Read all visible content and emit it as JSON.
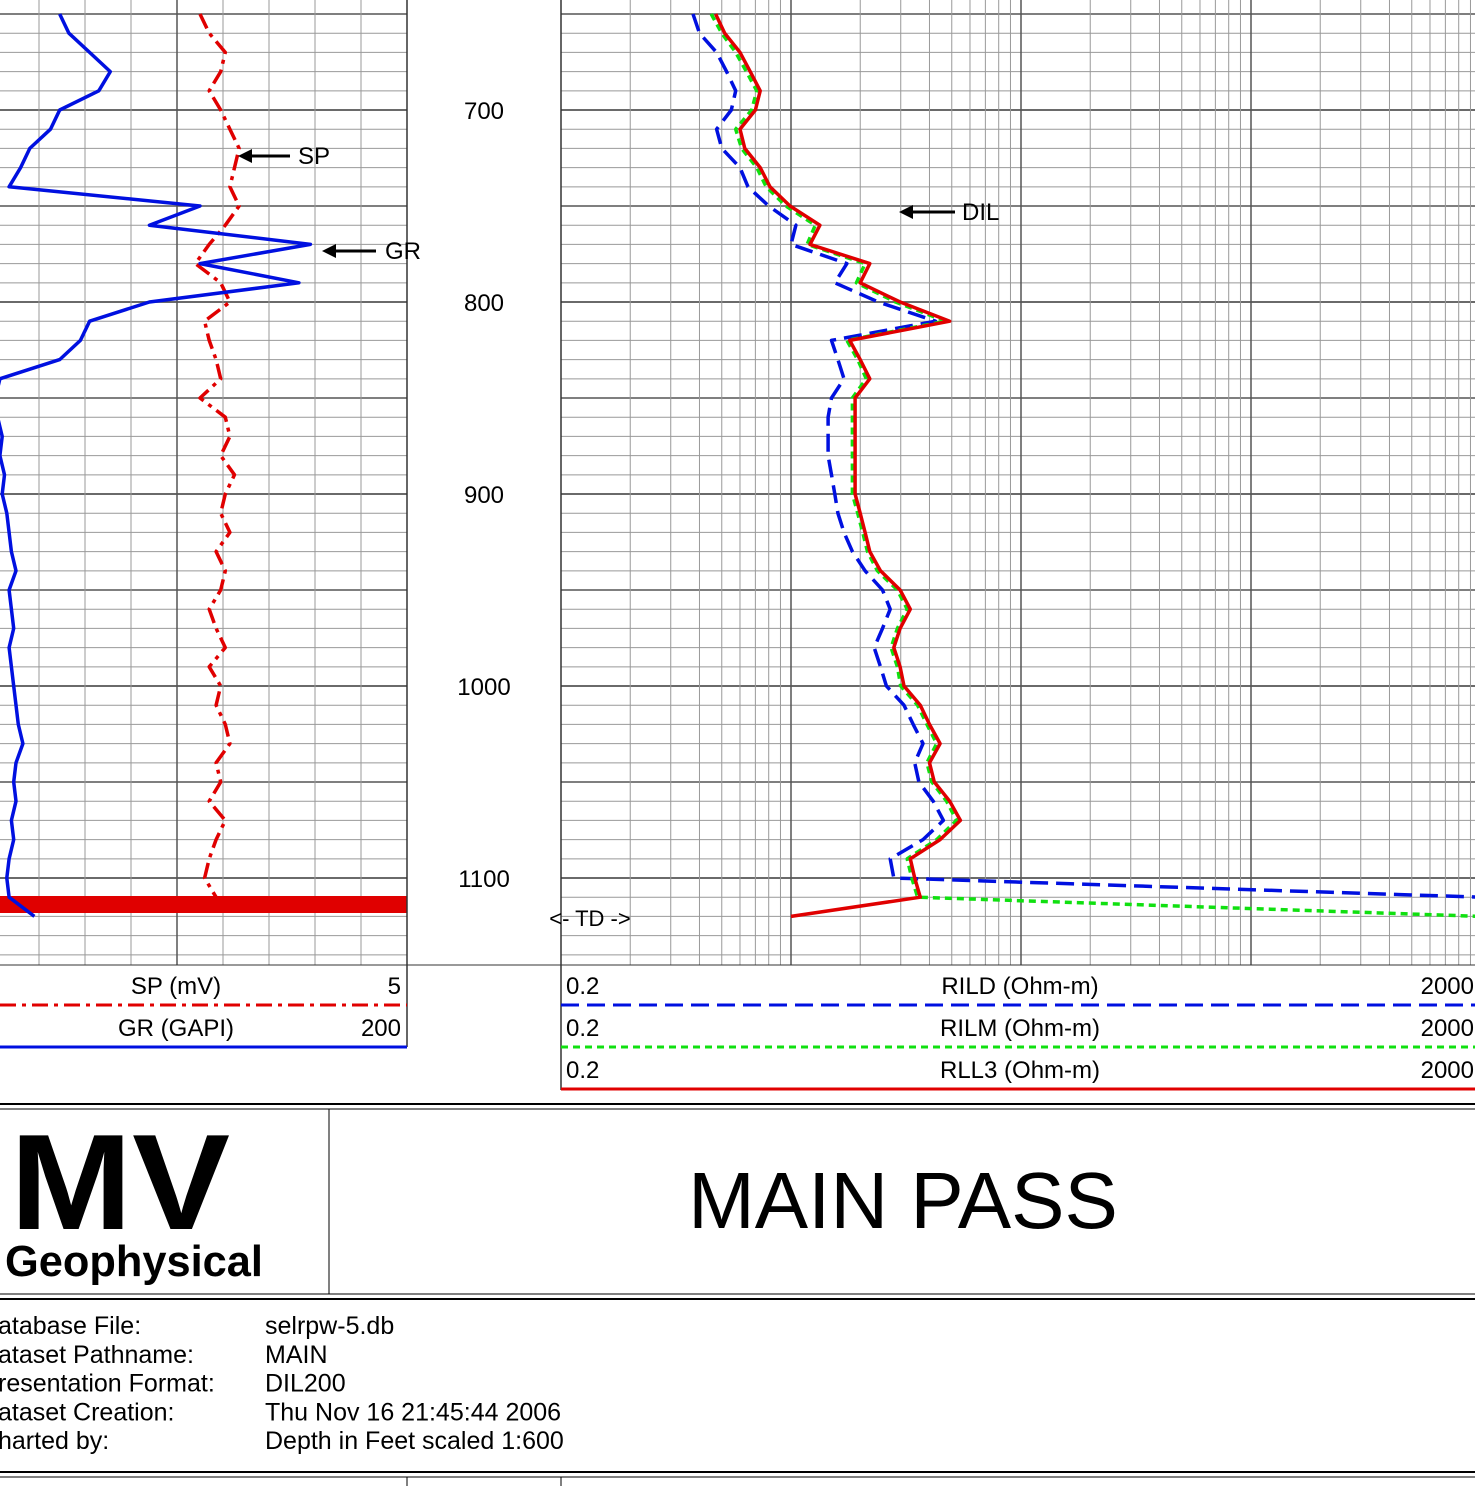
{
  "chart_data": {
    "type": "well-log",
    "ylim": [
      642.7,
      1145.3
    ],
    "yticks": [
      700,
      800,
      900,
      1000,
      1100
    ],
    "depth": [
      650,
      660,
      670,
      680,
      690,
      700,
      710,
      720,
      730,
      740,
      750,
      760,
      770,
      780,
      790,
      800,
      810,
      820,
      830,
      840,
      850,
      860,
      870,
      880,
      890,
      900,
      910,
      920,
      930,
      940,
      950,
      960,
      970,
      980,
      990,
      1000,
      1010,
      1020,
      1030,
      1040,
      1050,
      1060,
      1070,
      1080,
      1090,
      1100,
      1110,
      1120
    ],
    "tracks": [
      {
        "log": false,
        "series": [
          {
            "name": "SP (mV)",
            "color": "#e00000",
            "style": "dashdot",
            "xlim": [
              -195,
              5
            ],
            "values": [
              -85,
              -81,
              -74,
              -76,
              -81,
              -76,
              -72,
              -68,
              -70,
              -72,
              -68,
              -74,
              -81,
              -87,
              -76,
              -72,
              -83,
              -81,
              -78,
              -76,
              -85,
              -74,
              -72,
              -76,
              -70,
              -74,
              -76,
              -72,
              -78,
              -74,
              -76,
              -81,
              -78,
              -74,
              -81,
              -76,
              -78,
              -74,
              -72,
              -78,
              -76,
              -81,
              -74,
              -78,
              -81,
              -83,
              -78,
              null
            ]
          },
          {
            "name": "GR (GAPI)",
            "color": "#0010e0",
            "style": "solid",
            "xlim": [
              0,
              200
            ],
            "values": [
              49,
              53,
              62,
              71,
              66,
              49,
              45,
              36,
              32,
              27,
              110,
              88,
              158,
              110,
              153,
              88,
              62,
              58,
              49,
              23,
              21,
              22,
              24,
              23,
              25,
              24,
              26,
              27,
              28,
              30,
              27,
              28,
              29,
              27,
              28,
              29,
              30,
              31,
              33,
              30,
              29,
              30,
              28,
              29,
              27,
              26,
              27,
              38
            ]
          }
        ]
      },
      {
        "log": true,
        "series": [
          {
            "name": "RILD (Ohm-m)",
            "color": "#0010e0",
            "style": "dashed",
            "xlim": [
              0.2,
              2000
            ],
            "values": [
              0.75,
              0.8,
              0.95,
              1.05,
              1.15,
              1.1,
              0.95,
              1.0,
              1.2,
              1.3,
              1.6,
              2.1,
              2.0,
              3.5,
              3.1,
              4.8,
              8.5,
              3.0,
              3.2,
              3.4,
              3.0,
              2.9,
              2.9,
              2.9,
              3.0,
              3.1,
              3.2,
              3.4,
              3.7,
              4.2,
              5.0,
              5.4,
              5.0,
              4.6,
              4.9,
              5.2,
              6.2,
              6.8,
              7.5,
              6.9,
              7.2,
              8.3,
              9.2,
              7.5,
              5.4,
              5.6,
              2000,
              2000
            ]
          },
          {
            "name": "RILM (Ohm-m)",
            "color": "#10e010",
            "style": "dotted",
            "xlim": [
              0.2,
              2000
            ],
            "values": [
              0.9,
              1.0,
              1.15,
              1.28,
              1.42,
              1.35,
              1.15,
              1.22,
              1.42,
              1.56,
              1.9,
              2.55,
              2.35,
              4.2,
              3.85,
              5.7,
              9.4,
              3.5,
              3.9,
              4.25,
              3.7,
              3.7,
              3.7,
              3.7,
              3.7,
              3.7,
              3.9,
              4.1,
              4.3,
              4.75,
              5.8,
              6.4,
              5.8,
              5.45,
              5.8,
              6.0,
              7.1,
              7.8,
              8.6,
              7.8,
              8.2,
              9.5,
              10.5,
              8.6,
              6.4,
              6.7,
              7.1,
              2000
            ]
          },
          {
            "name": "RLL3 (Ohm-m)",
            "color": "#e00000",
            "style": "solid",
            "xlim": [
              0.2,
              2000
            ],
            "values": [
              0.94,
              1.03,
              1.2,
              1.33,
              1.47,
              1.4,
              1.2,
              1.26,
              1.47,
              1.62,
              1.98,
              2.67,
              2.42,
              4.4,
              4.0,
              5.96,
              9.8,
              3.6,
              4.0,
              4.4,
              3.8,
              3.8,
              3.8,
              3.8,
              3.8,
              3.8,
              4.0,
              4.2,
              4.4,
              4.9,
              5.96,
              6.6,
              5.96,
              5.6,
              5.96,
              6.2,
              7.3,
              8.0,
              8.9,
              8.0,
              8.4,
              9.8,
              10.9,
              8.9,
              6.6,
              6.9,
              7.3,
              2.0
            ]
          }
        ]
      }
    ],
    "annotations": [
      "SP",
      "GR",
      "DIL"
    ],
    "td_label": "<- TD ->"
  },
  "header": {
    "logo": [
      "MV",
      "Geophysical"
    ],
    "title": "MAIN PASS"
  },
  "info": [
    [
      "atabase File:",
      "selrpw-5.db"
    ],
    [
      "ataset Pathname:",
      "MAIN"
    ],
    [
      "resentation Format:",
      "DIL200"
    ],
    [
      "ataset Creation:",
      "Thu Nov 16 21:45:44 2006"
    ],
    [
      "harted by:",
      "Depth in Feet scaled 1:600"
    ]
  ]
}
